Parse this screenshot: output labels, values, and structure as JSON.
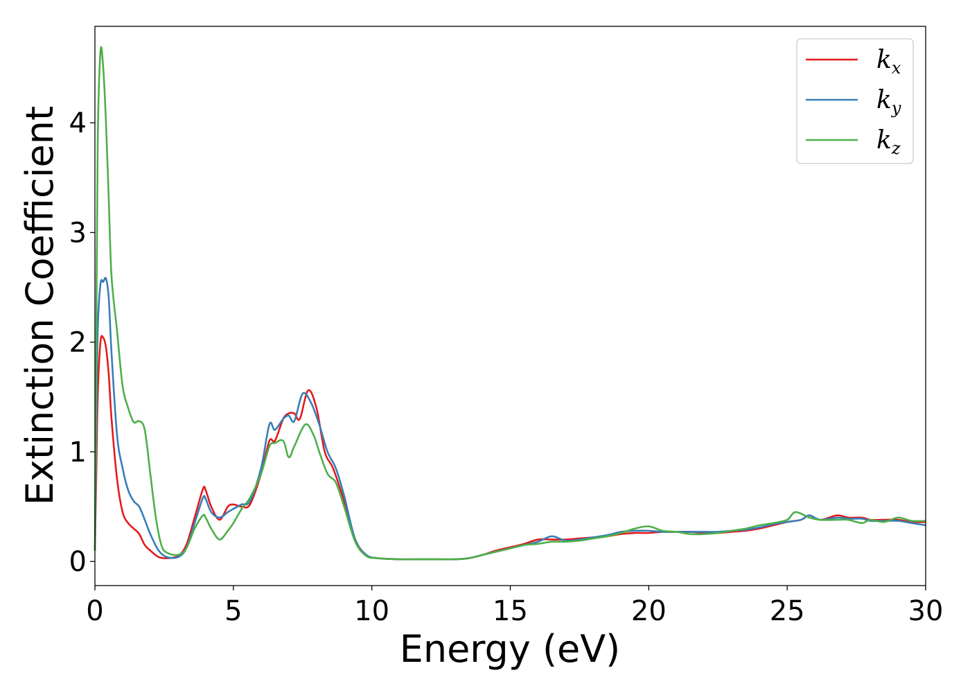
{
  "chart_data": {
    "type": "line",
    "title": "",
    "xlabel": "Energy (eV)",
    "ylabel": "Extinction Coefficient",
    "xlim": [
      0,
      30
    ],
    "ylim": [
      -0.22,
      4.88
    ],
    "xticks": [
      0,
      5,
      10,
      15,
      20,
      25,
      30
    ],
    "yticks": [
      0,
      1,
      2,
      3,
      4
    ],
    "xtick_labels": [
      "0",
      "5",
      "10",
      "15",
      "20",
      "25",
      "30"
    ],
    "ytick_labels": [
      "0",
      "1",
      "2",
      "3",
      "4"
    ],
    "grid": false,
    "legend_position": "top-right",
    "series": [
      {
        "name": "k_x",
        "label_main": "k",
        "label_sub": "x",
        "color": "#e41a1c",
        "x": [
          0,
          0.05,
          0.1,
          0.2,
          0.3,
          0.4,
          0.5,
          0.6,
          0.8,
          1.0,
          1.2,
          1.4,
          1.6,
          1.8,
          2.0,
          2.3,
          2.6,
          3.0,
          3.3,
          3.6,
          3.9,
          4.0,
          4.2,
          4.5,
          4.8,
          5.0,
          5.3,
          5.6,
          6.0,
          6.3,
          6.5,
          6.8,
          7.0,
          7.2,
          7.4,
          7.7,
          8.0,
          8.3,
          8.6,
          9.0,
          9.4,
          9.8,
          10.2,
          11,
          12,
          13,
          13.5,
          14,
          14.5,
          15,
          15.5,
          16,
          16.5,
          17,
          17.5,
          18,
          18.5,
          19,
          19.5,
          20,
          20.5,
          21,
          21.5,
          22,
          22.5,
          23,
          23.5,
          24,
          24.5,
          25,
          25.5,
          25.8,
          26.2,
          26.8,
          27.2,
          27.7,
          28,
          28.5,
          29,
          29.5,
          30
        ],
        "y": [
          0.1,
          0.8,
          1.5,
          2.0,
          2.04,
          1.95,
          1.7,
          1.3,
          0.75,
          0.45,
          0.35,
          0.3,
          0.25,
          0.15,
          0.1,
          0.04,
          0.03,
          0.05,
          0.15,
          0.4,
          0.66,
          0.65,
          0.5,
          0.38,
          0.5,
          0.52,
          0.5,
          0.52,
          0.8,
          1.1,
          1.1,
          1.3,
          1.35,
          1.35,
          1.3,
          1.56,
          1.4,
          1.0,
          0.85,
          0.55,
          0.2,
          0.06,
          0.03,
          0.02,
          0.02,
          0.02,
          0.03,
          0.06,
          0.1,
          0.13,
          0.16,
          0.2,
          0.2,
          0.2,
          0.21,
          0.22,
          0.23,
          0.25,
          0.26,
          0.26,
          0.27,
          0.27,
          0.27,
          0.26,
          0.26,
          0.27,
          0.28,
          0.3,
          0.33,
          0.36,
          0.38,
          0.42,
          0.38,
          0.42,
          0.4,
          0.4,
          0.38,
          0.38,
          0.38,
          0.36,
          0.36
        ]
      },
      {
        "name": "k_y",
        "label_main": "k",
        "label_sub": "y",
        "color": "#377eb8",
        "x": [
          0,
          0.05,
          0.1,
          0.2,
          0.3,
          0.4,
          0.5,
          0.6,
          0.8,
          1.0,
          1.2,
          1.4,
          1.6,
          1.8,
          2.0,
          2.3,
          2.6,
          3.0,
          3.3,
          3.6,
          3.9,
          4.0,
          4.2,
          4.5,
          4.8,
          5.0,
          5.3,
          5.6,
          6.0,
          6.3,
          6.5,
          6.8,
          7.0,
          7.2,
          7.5,
          7.8,
          8.1,
          8.4,
          8.7,
          9.0,
          9.4,
          9.8,
          10.2,
          11,
          12,
          13,
          13.5,
          14,
          14.5,
          15,
          15.5,
          16,
          16.5,
          17,
          17.5,
          18,
          18.5,
          19,
          19.5,
          20,
          20.5,
          21,
          21.5,
          22,
          22.5,
          23,
          23.5,
          24,
          24.5,
          25,
          25.5,
          25.8,
          26.2,
          26.8,
          27.2,
          27.7,
          28,
          28.5,
          29,
          29.5,
          30
        ],
        "y": [
          0.1,
          1.2,
          2.1,
          2.53,
          2.55,
          2.58,
          2.4,
          1.9,
          1.15,
          0.85,
          0.65,
          0.55,
          0.5,
          0.38,
          0.25,
          0.1,
          0.04,
          0.04,
          0.12,
          0.35,
          0.58,
          0.57,
          0.45,
          0.4,
          0.45,
          0.48,
          0.52,
          0.55,
          0.85,
          1.25,
          1.2,
          1.3,
          1.33,
          1.28,
          1.53,
          1.45,
          1.25,
          1.0,
          0.85,
          0.6,
          0.2,
          0.06,
          0.03,
          0.02,
          0.02,
          0.02,
          0.03,
          0.06,
          0.09,
          0.12,
          0.15,
          0.18,
          0.23,
          0.19,
          0.2,
          0.22,
          0.24,
          0.27,
          0.28,
          0.28,
          0.27,
          0.27,
          0.27,
          0.27,
          0.27,
          0.28,
          0.29,
          0.31,
          0.34,
          0.36,
          0.38,
          0.42,
          0.38,
          0.4,
          0.39,
          0.39,
          0.37,
          0.37,
          0.37,
          0.35,
          0.33
        ]
      },
      {
        "name": "k_z",
        "label_main": "k",
        "label_sub": "z",
        "color": "#4daf4a",
        "x": [
          0,
          0.05,
          0.1,
          0.2,
          0.3,
          0.4,
          0.5,
          0.6,
          0.8,
          1.0,
          1.2,
          1.4,
          1.6,
          1.8,
          2.0,
          2.2,
          2.4,
          2.6,
          3.0,
          3.3,
          3.6,
          3.9,
          4.0,
          4.2,
          4.5,
          4.8,
          5.0,
          5.3,
          5.6,
          6.0,
          6.3,
          6.5,
          6.8,
          7.0,
          7.2,
          7.6,
          7.9,
          8.1,
          8.4,
          8.7,
          9.0,
          9.4,
          9.8,
          10.2,
          11,
          12,
          13,
          13.5,
          14,
          14.5,
          15,
          15.5,
          16,
          16.5,
          17,
          17.5,
          18,
          18.5,
          19,
          19.5,
          20,
          20.5,
          21,
          21.5,
          22,
          22.5,
          23,
          23.5,
          24,
          24.5,
          25,
          25.3,
          25.8,
          26.2,
          26.8,
          27.2,
          27.7,
          28,
          28.5,
          29,
          29.5,
          30
        ],
        "y": [
          0.1,
          2.0,
          3.8,
          4.65,
          4.5,
          4.0,
          3.3,
          2.6,
          2.1,
          1.6,
          1.4,
          1.27,
          1.28,
          1.2,
          0.8,
          0.4,
          0.15,
          0.08,
          0.06,
          0.12,
          0.3,
          0.42,
          0.4,
          0.3,
          0.2,
          0.28,
          0.35,
          0.48,
          0.58,
          0.8,
          1.05,
          1.08,
          1.1,
          0.95,
          1.05,
          1.25,
          1.15,
          1.0,
          0.8,
          0.72,
          0.5,
          0.18,
          0.05,
          0.03,
          0.02,
          0.02,
          0.02,
          0.03,
          0.06,
          0.09,
          0.12,
          0.15,
          0.16,
          0.18,
          0.18,
          0.19,
          0.21,
          0.23,
          0.26,
          0.3,
          0.32,
          0.28,
          0.27,
          0.25,
          0.25,
          0.26,
          0.28,
          0.3,
          0.33,
          0.35,
          0.38,
          0.45,
          0.4,
          0.38,
          0.38,
          0.38,
          0.35,
          0.38,
          0.36,
          0.4,
          0.37,
          0.37
        ]
      }
    ]
  }
}
